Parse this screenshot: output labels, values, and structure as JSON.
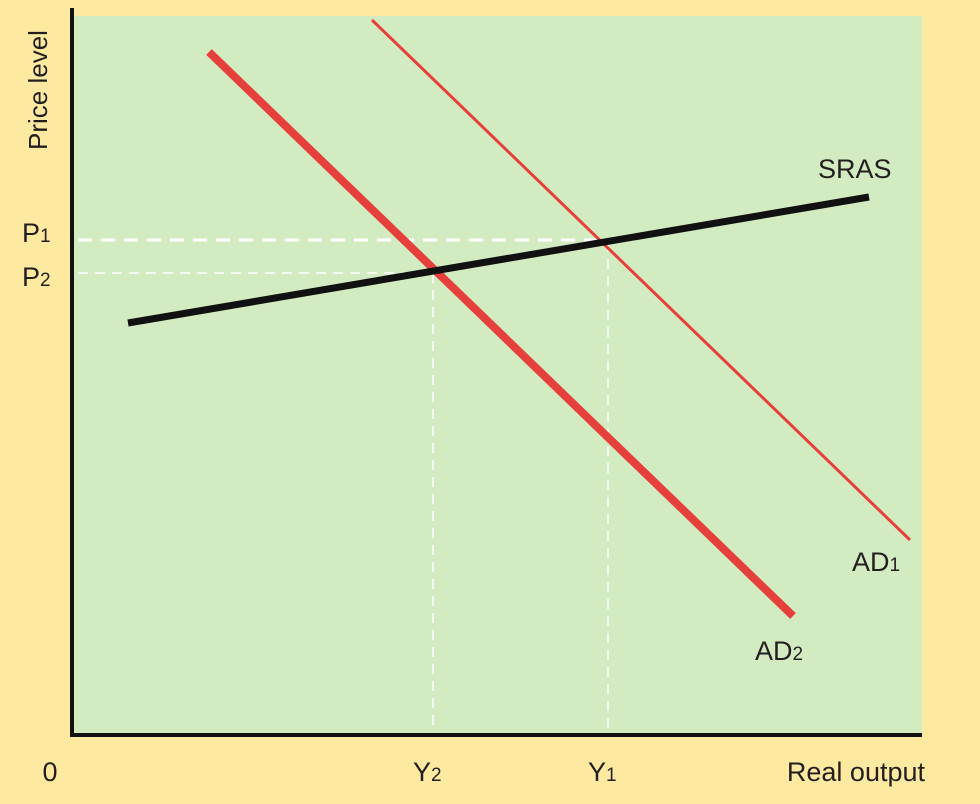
{
  "colors": {
    "page_background": "#fdeaa0",
    "plot_background": "#d3ebc1",
    "axis": "#111111",
    "sras": "#111111",
    "ad": "#e5403b",
    "guide": "#ffffff",
    "text": "#231f20"
  },
  "axes": {
    "ylabel": "Price level",
    "xlabel": "Real output",
    "origin": "0"
  },
  "price_labels": {
    "p1": {
      "letter": "P",
      "sub": "1"
    },
    "p2": {
      "letter": "P",
      "sub": "2"
    }
  },
  "output_labels": {
    "y2": {
      "letter": "Y",
      "sub": "2"
    },
    "y1": {
      "letter": "Y",
      "sub": "1"
    }
  },
  "curves": {
    "sras": {
      "label": "SRAS"
    },
    "ad1": {
      "letter": "AD",
      "sub": "1"
    },
    "ad2": {
      "letter": "AD",
      "sub": "2"
    }
  }
}
